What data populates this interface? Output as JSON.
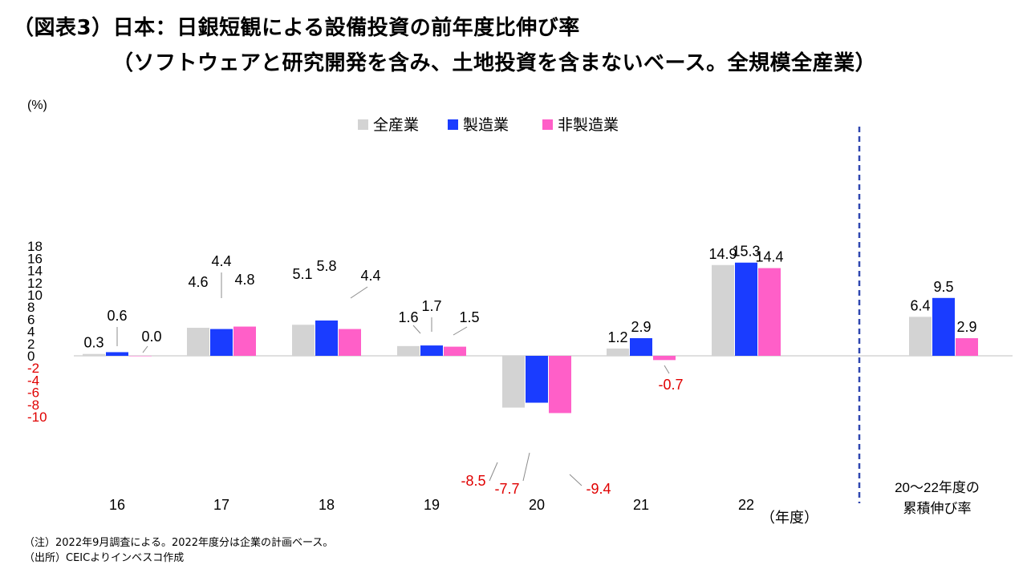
{
  "title_line1": "（図表3）日本：日銀短観による設備投資の前年度比伸び率",
  "title_line2": "（ソフトウェアと研究開発を含み、土地投資を含まないベース。全規模全産業）",
  "notes": [
    "（注）2022年9月調査による。2022年度分は企業の計画ベース。",
    "（出所）CEICよりインベスコ作成"
  ],
  "colors": {
    "all": "#d3d3d3",
    "mfg": "#1a3cff",
    "nonmfg": "#ff5fc8",
    "negative_label": "#e00000",
    "divider": "#2f47b0"
  },
  "chart_data": {
    "type": "bar",
    "yunit": "(%)",
    "ylim": [
      -10,
      18
    ],
    "yticks": [
      18,
      16,
      14,
      12,
      10,
      8,
      6,
      4,
      2,
      0,
      -2,
      -4,
      -6,
      -8,
      -10
    ],
    "categories": [
      "16",
      "17",
      "18",
      "19",
      "20",
      "21",
      "22",
      "20～22年度の累積伸び率"
    ],
    "xunit": "（年度）",
    "legend_position": "top-center",
    "series": [
      {
        "name": "全産業",
        "values": [
          0.3,
          4.6,
          5.1,
          1.6,
          -8.5,
          1.2,
          14.9,
          6.4
        ],
        "labels": [
          "0.3",
          "4.6",
          "5.1",
          "1.6",
          "-8.5",
          "1.2",
          "14.9",
          "6.4"
        ]
      },
      {
        "name": "製造業",
        "values": [
          0.6,
          4.4,
          5.8,
          1.7,
          -7.7,
          2.9,
          15.3,
          9.5
        ],
        "labels": [
          "0.6",
          "4.4",
          "5.8",
          "1.7",
          "-7.7",
          "2.9",
          "15.3",
          "9.5"
        ]
      },
      {
        "name": "非製造業",
        "values": [
          0.0,
          4.8,
          4.4,
          1.5,
          -9.4,
          -0.7,
          14.4,
          2.9
        ],
        "labels": [
          "0.0",
          "4.8",
          "4.4",
          "1.5",
          "-9.4",
          "-0.7",
          "14.4",
          "2.9"
        ]
      }
    ]
  }
}
